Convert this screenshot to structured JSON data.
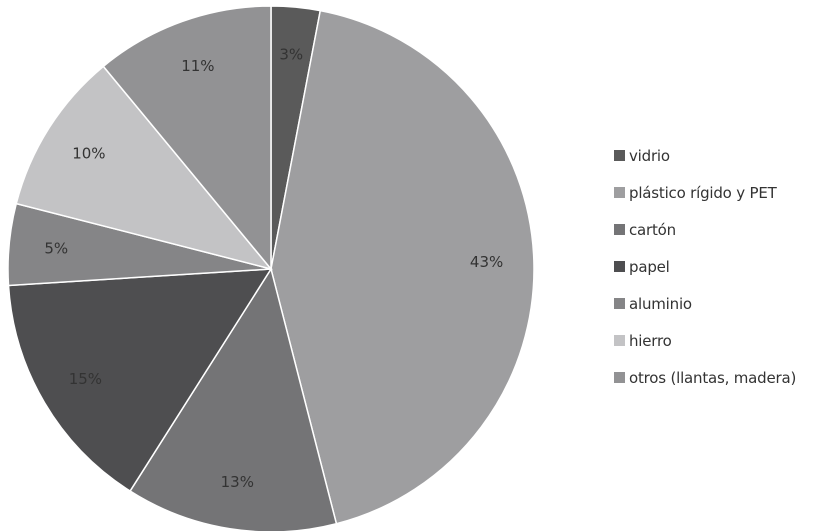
{
  "chart_data": {
    "type": "pie",
    "title": "",
    "slices": [
      {
        "name": "vidrio",
        "value": 3,
        "label": "3%",
        "color": "#5a5a5a"
      },
      {
        "name": "plástico rígido y PET",
        "value": 43,
        "label": "43%",
        "color": "#9e9ea0"
      },
      {
        "name": "cartón",
        "value": 13,
        "label": "13%",
        "color": "#747476"
      },
      {
        "name": "papel",
        "value": 15,
        "label": "15%",
        "color": "#4e4e50"
      },
      {
        "name": "aluminio",
        "value": 5,
        "label": "5%",
        "color": "#858587"
      },
      {
        "name": "hierro",
        "value": 10,
        "label": "10%",
        "color": "#c3c3c5"
      },
      {
        "name": "otros (llantas, madera)",
        "value": 11,
        "label": "11%",
        "color": "#929294"
      }
    ],
    "start": "top",
    "direction": "clockwise",
    "legend_position": "right"
  }
}
